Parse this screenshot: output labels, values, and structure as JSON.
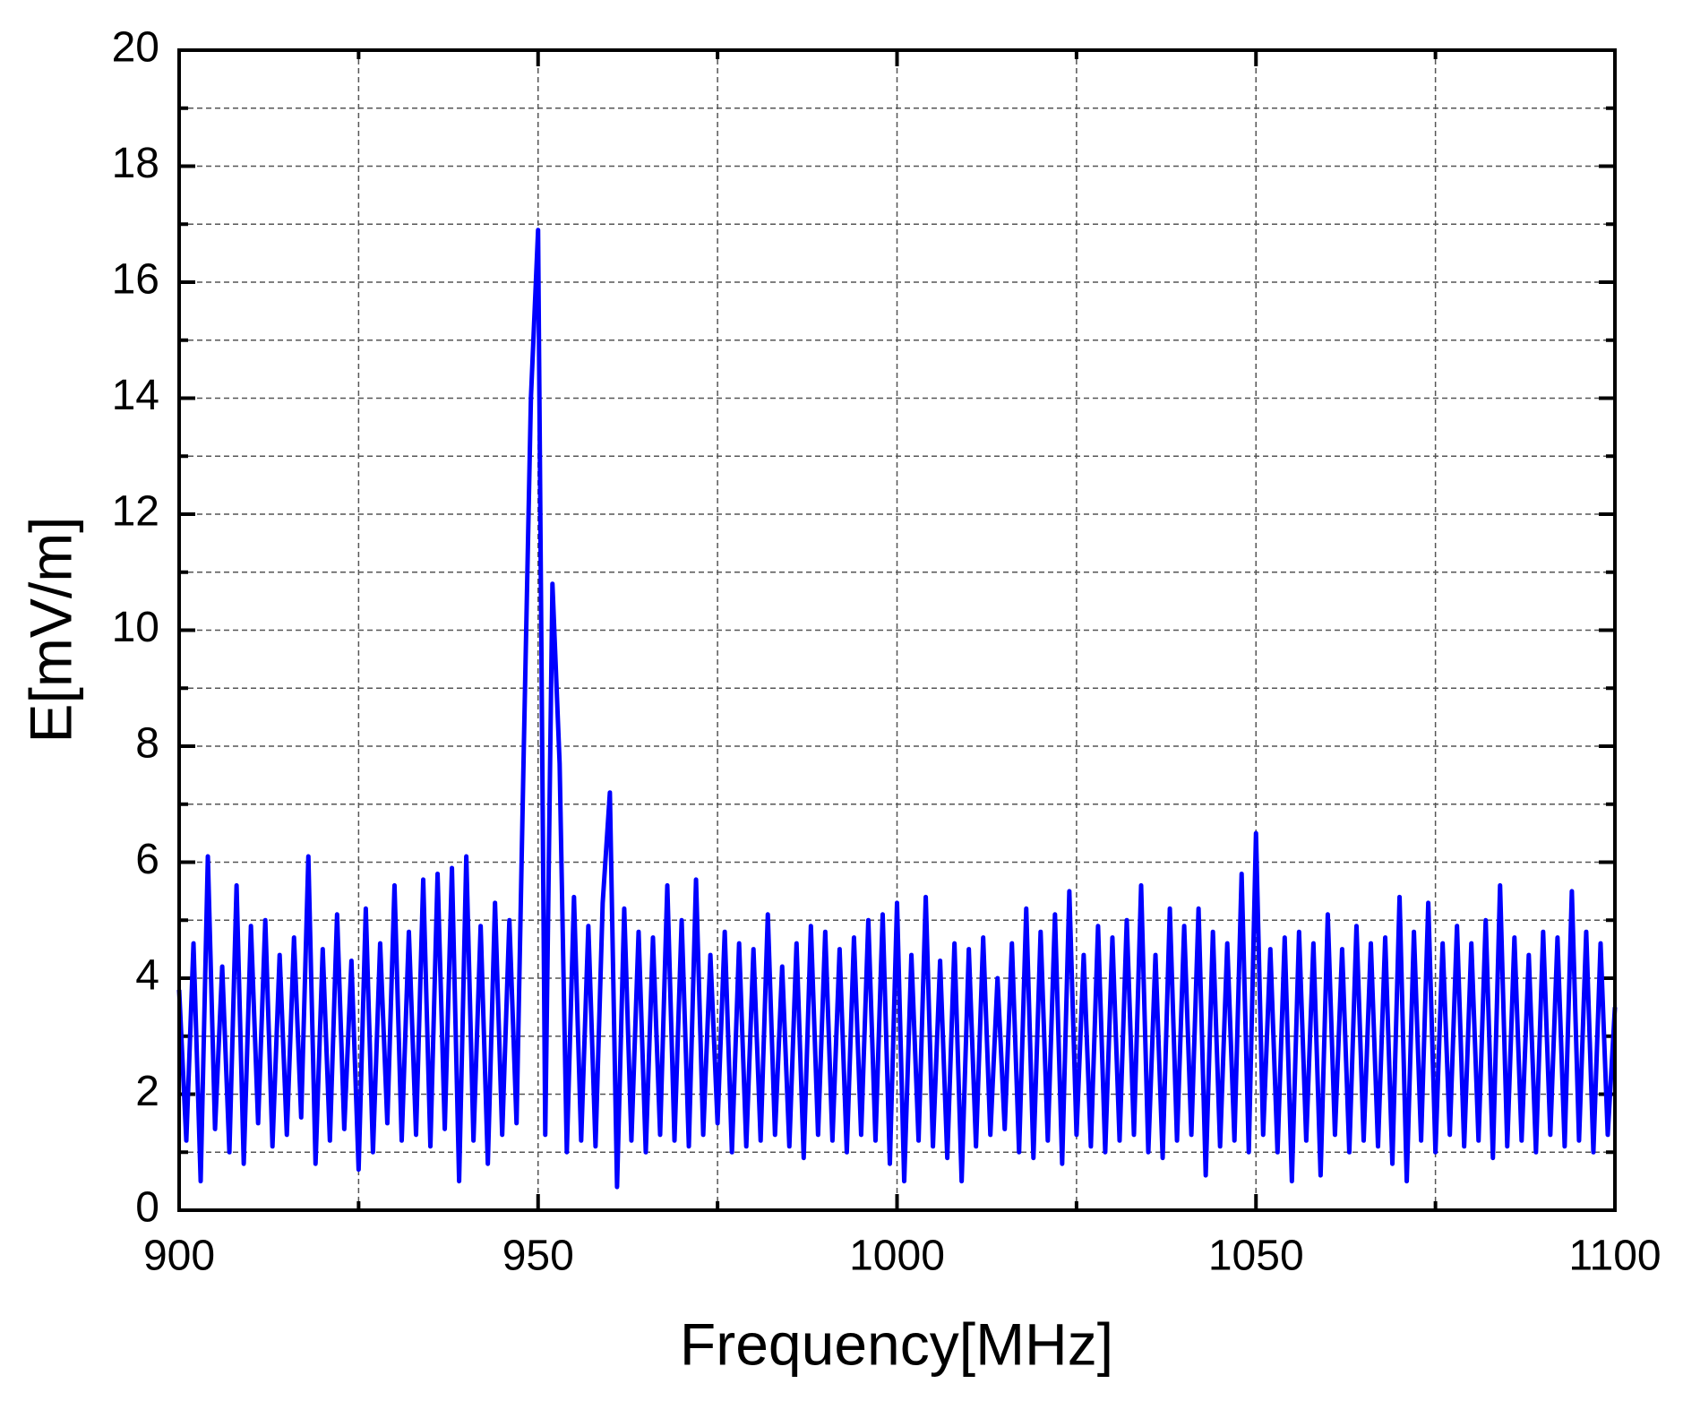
{
  "chart_data": {
    "type": "line",
    "x_label": "Frequency[MHz]",
    "y_label": "E[mV/m]",
    "x": [
      900,
      901,
      902,
      903,
      904,
      905,
      906,
      907,
      908,
      909,
      910,
      911,
      912,
      913,
      914,
      915,
      916,
      917,
      918,
      919,
      920,
      921,
      922,
      923,
      924,
      925,
      926,
      927,
      928,
      929,
      930,
      931,
      932,
      933,
      934,
      935,
      936,
      937,
      938,
      939,
      940,
      941,
      942,
      943,
      944,
      945,
      946,
      947,
      948,
      949,
      950,
      951,
      952,
      953,
      954,
      955,
      956,
      957,
      958,
      959,
      960,
      961,
      962,
      963,
      964,
      965,
      966,
      967,
      968,
      969,
      970,
      971,
      972,
      973,
      974,
      975,
      976,
      977,
      978,
      979,
      980,
      981,
      982,
      983,
      984,
      985,
      986,
      987,
      988,
      989,
      990,
      991,
      992,
      993,
      994,
      995,
      996,
      997,
      998,
      999,
      1000,
      1001,
      1002,
      1003,
      1004,
      1005,
      1006,
      1007,
      1008,
      1009,
      1010,
      1011,
      1012,
      1013,
      1014,
      1015,
      1016,
      1017,
      1018,
      1019,
      1020,
      1021,
      1022,
      1023,
      1024,
      1025,
      1026,
      1027,
      1028,
      1029,
      1030,
      1031,
      1032,
      1033,
      1034,
      1035,
      1036,
      1037,
      1038,
      1039,
      1040,
      1041,
      1042,
      1043,
      1044,
      1045,
      1046,
      1047,
      1048,
      1049,
      1050,
      1051,
      1052,
      1053,
      1054,
      1055,
      1056,
      1057,
      1058,
      1059,
      1060,
      1061,
      1062,
      1063,
      1064,
      1065,
      1066,
      1067,
      1068,
      1069,
      1070,
      1071,
      1072,
      1073,
      1074,
      1075,
      1076,
      1077,
      1078,
      1079,
      1080,
      1081,
      1082,
      1083,
      1084,
      1085,
      1086,
      1087,
      1088,
      1089,
      1090,
      1091,
      1092,
      1093,
      1094,
      1095,
      1096,
      1097,
      1098,
      1099,
      1100
    ],
    "series": [
      {
        "color": "#0000ff",
        "values": [
          3.8,
          1.2,
          4.6,
          0.5,
          6.1,
          1.4,
          4.2,
          1.0,
          5.6,
          0.8,
          4.9,
          1.5,
          5.0,
          1.1,
          4.4,
          1.3,
          4.7,
          1.6,
          6.1,
          0.8,
          4.5,
          1.2,
          5.1,
          1.4,
          4.3,
          0.7,
          5.2,
          1.0,
          4.6,
          1.5,
          5.6,
          1.2,
          4.8,
          1.3,
          5.7,
          1.1,
          5.8,
          1.4,
          5.9,
          0.5,
          6.1,
          1.2,
          4.9,
          0.8,
          5.3,
          1.3,
          5.0,
          1.5,
          7.9,
          14.0,
          16.9,
          1.3,
          10.8,
          7.7,
          1.0,
          5.4,
          1.2,
          4.9,
          1.1,
          5.3,
          7.2,
          0.4,
          5.2,
          1.2,
          4.8,
          1.0,
          4.7,
          1.3,
          5.6,
          1.2,
          5.0,
          1.1,
          5.7,
          1.3,
          4.4,
          1.5,
          4.8,
          1.0,
          4.6,
          1.1,
          4.5,
          1.2,
          5.1,
          1.3,
          4.2,
          1.1,
          4.6,
          0.9,
          4.9,
          1.3,
          4.8,
          1.2,
          4.5,
          1.0,
          4.7,
          1.3,
          5.0,
          1.2,
          5.1,
          0.8,
          5.3,
          0.5,
          4.4,
          1.2,
          5.4,
          1.1,
          4.3,
          0.9,
          4.6,
          0.5,
          4.5,
          1.1,
          4.7,
          1.3,
          4.0,
          1.4,
          4.6,
          1.0,
          5.2,
          0.9,
          4.8,
          1.2,
          5.1,
          0.8,
          5.5,
          1.3,
          4.4,
          1.1,
          4.9,
          1.0,
          4.7,
          1.2,
          5.0,
          1.3,
          5.6,
          1.0,
          4.4,
          0.9,
          5.2,
          1.2,
          4.9,
          1.3,
          5.2,
          0.6,
          4.8,
          1.1,
          4.6,
          1.2,
          5.8,
          1.0,
          6.5,
          1.3,
          4.5,
          1.0,
          4.7,
          0.5,
          4.8,
          1.2,
          4.6,
          0.6,
          5.1,
          1.3,
          4.5,
          1.0,
          4.9,
          1.2,
          4.6,
          1.1,
          4.7,
          0.8,
          5.4,
          0.5,
          4.8,
          1.2,
          5.3,
          1.0,
          4.6,
          1.3,
          4.9,
          1.1,
          4.6,
          1.2,
          5.0,
          0.9,
          5.6,
          1.1,
          4.7,
          1.2,
          4.4,
          1.0,
          4.8,
          1.3,
          4.7,
          1.1,
          5.5,
          1.2,
          4.8,
          1.0,
          4.6,
          1.3,
          3.5
        ]
      }
    ],
    "xlim": [
      900,
      1100
    ],
    "xticks": [
      900,
      950,
      1000,
      1050,
      1100
    ],
    "ylim": [
      0,
      20
    ],
    "yticks": [
      0,
      2,
      4,
      6,
      8,
      10,
      12,
      14,
      16,
      18,
      20
    ],
    "grid": true
  }
}
